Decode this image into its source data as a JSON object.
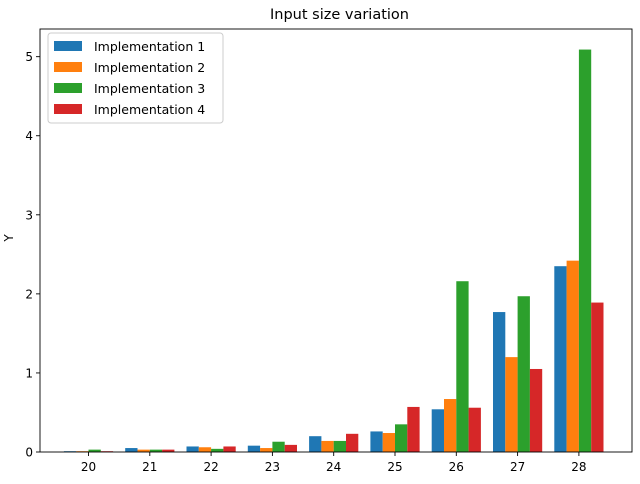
{
  "chart_data": {
    "type": "bar",
    "title": "Input size variation",
    "xlabel": "",
    "ylabel": "Y",
    "categories": [
      "20",
      "21",
      "22",
      "23",
      "24",
      "25",
      "26",
      "27",
      "28"
    ],
    "series": [
      {
        "name": "Implementation 1",
        "color": "#1f77b4",
        "values": [
          0.01,
          0.05,
          0.07,
          0.08,
          0.2,
          0.26,
          0.54,
          1.77,
          2.35
        ]
      },
      {
        "name": "Implementation 2",
        "color": "#ff7f0e",
        "values": [
          0.01,
          0.03,
          0.06,
          0.05,
          0.14,
          0.24,
          0.67,
          1.2,
          2.42
        ]
      },
      {
        "name": "Implementation 3",
        "color": "#2ca02c",
        "values": [
          0.03,
          0.03,
          0.04,
          0.13,
          0.14,
          0.35,
          2.16,
          1.97,
          5.09
        ]
      },
      {
        "name": "Implementation 4",
        "color": "#d62728",
        "values": [
          0.01,
          0.03,
          0.07,
          0.09,
          0.23,
          0.57,
          0.56,
          1.05,
          1.89
        ]
      }
    ],
    "yticks": [
      "0",
      "1",
      "2",
      "3",
      "4",
      "5"
    ],
    "ylim": [
      0,
      5.35
    ],
    "grid": false,
    "legend_position": "top-left"
  }
}
